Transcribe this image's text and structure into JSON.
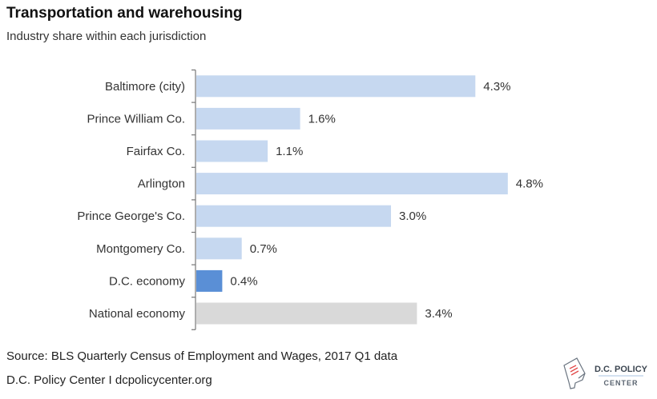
{
  "title": "Transportation and warehousing",
  "subtitle": "Industry share within each jurisdiction",
  "source": "Source: BLS Quarterly Census of Employment and Wages, 2017 Q1 data",
  "credit": "D.C. Policy Center  I  dcpolicycenter.org",
  "logo": {
    "line1": "D.C. POLICY",
    "line2": "CENTER"
  },
  "colors": {
    "default": "#c6d8f0",
    "highlight": "#5a8fd6",
    "national": "#d9d9d9",
    "axis": "#777777"
  },
  "chart_data": {
    "type": "bar",
    "orientation": "horizontal",
    "title": "Transportation and warehousing",
    "subtitle": "Industry share within each jurisdiction",
    "categories": [
      "Baltimore (city)",
      "Prince William Co.",
      "Fairfax Co.",
      "Arlington",
      "Prince George's Co.",
      "Montgomery Co.",
      "D.C. economy",
      "National economy"
    ],
    "values": [
      4.3,
      1.6,
      1.1,
      4.8,
      3.0,
      0.7,
      0.4,
      3.4
    ],
    "labels": [
      "4.3%",
      "1.6%",
      "1.1%",
      "4.8%",
      "3.0%",
      "0.7%",
      "0.4%",
      "3.4%"
    ],
    "unit": "%",
    "bar_colors": [
      "#c6d8f0",
      "#c6d8f0",
      "#c6d8f0",
      "#c6d8f0",
      "#c6d8f0",
      "#c6d8f0",
      "#5a8fd6",
      "#d9d9d9"
    ],
    "xlim": [
      0,
      5
    ],
    "grid": false,
    "legend": "none"
  }
}
